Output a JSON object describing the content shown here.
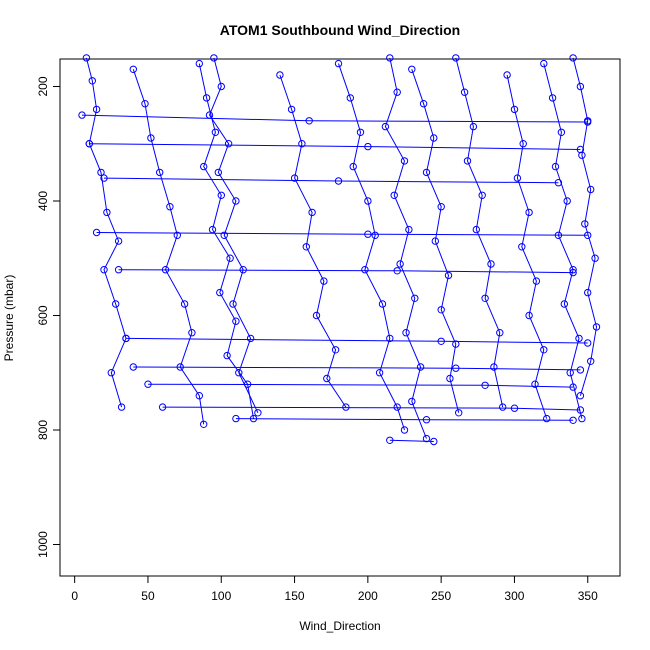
{
  "chart_data": {
    "type": "scatter",
    "title": "ATOM1 Southbound Wind_Direction",
    "xlabel": "Wind_Direction",
    "ylabel": "Pressure (mbar)",
    "xlim": [
      -10,
      372
    ],
    "ylim": [
      1055,
      152
    ],
    "y_reversed": true,
    "x_ticks": [
      0,
      50,
      100,
      150,
      200,
      250,
      300,
      350
    ],
    "y_ticks": [
      200,
      400,
      600,
      800,
      1000
    ],
    "grid": false,
    "legend": "none",
    "marker": "open-circle",
    "lines": true,
    "color": "#0000ff",
    "profiles": [
      {
        "points": [
          [
            8,
            150
          ],
          [
            12,
            190
          ],
          [
            15,
            240
          ],
          [
            10,
            300
          ],
          [
            18,
            350
          ],
          [
            22,
            420
          ],
          [
            30,
            470
          ],
          [
            20,
            520
          ],
          [
            28,
            580
          ],
          [
            35,
            640
          ],
          [
            25,
            700
          ],
          [
            32,
            760
          ]
        ]
      },
      {
        "points": [
          [
            40,
            170
          ],
          [
            48,
            230
          ],
          [
            52,
            290
          ],
          [
            58,
            350
          ],
          [
            65,
            410
          ],
          [
            70,
            460
          ],
          [
            62,
            520
          ],
          [
            75,
            580
          ],
          [
            80,
            630
          ],
          [
            72,
            690
          ],
          [
            85,
            740
          ],
          [
            88,
            790
          ]
        ]
      },
      {
        "points": [
          [
            95,
            150
          ],
          [
            100,
            200
          ],
          [
            92,
            250
          ],
          [
            105,
            300
          ],
          [
            98,
            350
          ],
          [
            110,
            400
          ],
          [
            102,
            460
          ],
          [
            115,
            520
          ],
          [
            108,
            580
          ],
          [
            120,
            640
          ],
          [
            112,
            700
          ],
          [
            125,
            770
          ]
        ]
      },
      {
        "points": [
          [
            85,
            160
          ],
          [
            90,
            220
          ],
          [
            96,
            280
          ],
          [
            88,
            340
          ],
          [
            100,
            390
          ],
          [
            94,
            450
          ],
          [
            106,
            500
          ],
          [
            99,
            560
          ],
          [
            110,
            610
          ],
          [
            104,
            670
          ],
          [
            118,
            720
          ],
          [
            122,
            780
          ]
        ]
      },
      {
        "points": [
          [
            140,
            180
          ],
          [
            148,
            240
          ],
          [
            155,
            300
          ],
          [
            150,
            360
          ],
          [
            162,
            420
          ],
          [
            158,
            480
          ],
          [
            170,
            540
          ],
          [
            165,
            600
          ],
          [
            178,
            660
          ],
          [
            172,
            710
          ],
          [
            185,
            760
          ]
        ]
      },
      {
        "points": [
          [
            180,
            160
          ],
          [
            188,
            220
          ],
          [
            195,
            280
          ],
          [
            190,
            340
          ],
          [
            200,
            400
          ],
          [
            205,
            460
          ],
          [
            198,
            520
          ],
          [
            210,
            580
          ],
          [
            215,
            640
          ],
          [
            208,
            700
          ],
          [
            220,
            760
          ],
          [
            225,
            800
          ]
        ]
      },
      {
        "points": [
          [
            215,
            150
          ],
          [
            220,
            210
          ],
          [
            212,
            270
          ],
          [
            225,
            330
          ],
          [
            218,
            390
          ],
          [
            228,
            450
          ],
          [
            222,
            510
          ],
          [
            232,
            570
          ],
          [
            226,
            630
          ],
          [
            236,
            690
          ],
          [
            230,
            750
          ],
          [
            240,
            815
          ]
        ]
      },
      {
        "points": [
          [
            230,
            170
          ],
          [
            238,
            230
          ],
          [
            245,
            290
          ],
          [
            240,
            350
          ],
          [
            250,
            410
          ],
          [
            246,
            470
          ],
          [
            255,
            530
          ],
          [
            250,
            590
          ],
          [
            260,
            650
          ],
          [
            256,
            710
          ],
          [
            262,
            770
          ]
        ]
      },
      {
        "points": [
          [
            260,
            150
          ],
          [
            266,
            210
          ],
          [
            272,
            270
          ],
          [
            268,
            330
          ],
          [
            278,
            390
          ],
          [
            274,
            450
          ],
          [
            284,
            510
          ],
          [
            280,
            570
          ],
          [
            290,
            630
          ],
          [
            286,
            690
          ],
          [
            292,
            760
          ]
        ]
      },
      {
        "points": [
          [
            295,
            180
          ],
          [
            300,
            240
          ],
          [
            306,
            300
          ],
          [
            302,
            360
          ],
          [
            310,
            420
          ],
          [
            305,
            480
          ],
          [
            315,
            540
          ],
          [
            310,
            600
          ],
          [
            320,
            660
          ],
          [
            314,
            720
          ],
          [
            322,
            780
          ]
        ]
      },
      {
        "points": [
          [
            320,
            160
          ],
          [
            326,
            220
          ],
          [
            332,
            280
          ],
          [
            328,
            340
          ],
          [
            336,
            400
          ],
          [
            330,
            460
          ],
          [
            340,
            520
          ],
          [
            334,
            580
          ],
          [
            344,
            640
          ],
          [
            338,
            700
          ],
          [
            346,
            780
          ]
        ]
      },
      {
        "points": [
          [
            340,
            150
          ],
          [
            345,
            200
          ],
          [
            350,
            260
          ],
          [
            346,
            320
          ],
          [
            352,
            380
          ],
          [
            348,
            440
          ],
          [
            355,
            500
          ],
          [
            350,
            560
          ],
          [
            356,
            620
          ],
          [
            352,
            680
          ],
          [
            345,
            740
          ]
        ]
      },
      {
        "points": [
          [
            5,
            250
          ],
          [
            160,
            260
          ],
          [
            350,
            262
          ]
        ]
      },
      {
        "points": [
          [
            10,
            300
          ],
          [
            200,
            305
          ],
          [
            345,
            310
          ]
        ]
      },
      {
        "points": [
          [
            20,
            360
          ],
          [
            180,
            365
          ],
          [
            330,
            368
          ]
        ]
      },
      {
        "points": [
          [
            15,
            455
          ],
          [
            200,
            458
          ],
          [
            350,
            460
          ]
        ]
      },
      {
        "points": [
          [
            30,
            520
          ],
          [
            220,
            522
          ],
          [
            340,
            525
          ]
        ]
      },
      {
        "points": [
          [
            35,
            640
          ],
          [
            250,
            645
          ],
          [
            350,
            648
          ]
        ]
      },
      {
        "points": [
          [
            40,
            690
          ],
          [
            260,
            692
          ],
          [
            345,
            695
          ]
        ]
      },
      {
        "points": [
          [
            50,
            720
          ],
          [
            280,
            722
          ],
          [
            340,
            725
          ]
        ]
      },
      {
        "points": [
          [
            60,
            760
          ],
          [
            300,
            762
          ],
          [
            345,
            765
          ]
        ]
      },
      {
        "points": [
          [
            110,
            780
          ],
          [
            240,
            782
          ],
          [
            340,
            783
          ]
        ]
      },
      {
        "points": [
          [
            215,
            818
          ],
          [
            245,
            820
          ]
        ]
      }
    ]
  }
}
